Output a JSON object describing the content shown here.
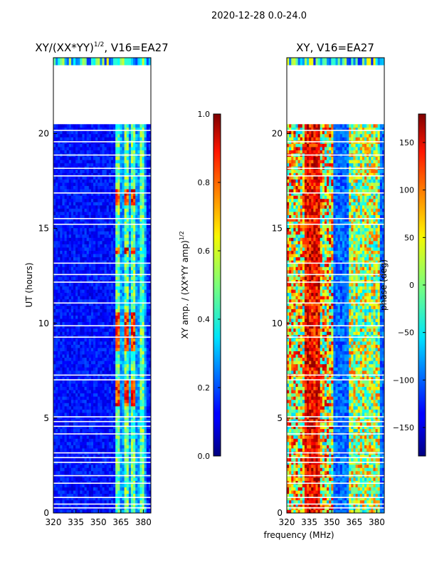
{
  "figure": {
    "suptitle": "2020-12-28 0.0-24.0",
    "xlabel": "frequency (MHz)"
  },
  "chart_data": [
    {
      "type": "heatmap",
      "id": "amp",
      "title": "XY/(XX*YY)",
      "title_exp": "1/2",
      "title_suffix": ", V16=EA27",
      "xlabel": "frequency (MHz)",
      "ylabel": "UT (hours)",
      "xlim": [
        320,
        385
      ],
      "ylim": [
        0,
        24
      ],
      "xticks": [
        320,
        335,
        350,
        365,
        380
      ],
      "yticks": [
        0,
        5,
        10,
        15,
        20
      ],
      "colorbar": {
        "label": "XY amp. / (XX*YY amp)",
        "label_exp": "1/2",
        "range": [
          0.0,
          1.0
        ],
        "ticks": [
          "0.0",
          "0.2",
          "0.4",
          "0.6",
          "0.8",
          "1.0"
        ],
        "tick_values": [
          0.0,
          0.2,
          0.4,
          0.6,
          0.8,
          1.0
        ]
      },
      "colormap": "jet",
      "blank_hours": [
        23.6,
        20.5
      ],
      "hot_bands": [
        [
          5.5,
          7.0
        ],
        [
          8.5,
          10.5
        ],
        [
          13.5,
          14.0
        ],
        [
          16.2,
          17.0
        ]
      ],
      "active_freq_range": [
        361,
        382
      ]
    },
    {
      "type": "heatmap",
      "id": "phase",
      "title": "XY, V16=EA27",
      "xlabel": "frequency (MHz)",
      "ylabel": "",
      "xlim": [
        320,
        385
      ],
      "ylim": [
        0,
        24
      ],
      "xticks": [
        320,
        335,
        350,
        365,
        380
      ],
      "yticks": [
        0,
        5,
        10,
        15,
        20
      ],
      "colorbar": {
        "label": "phase (deg)",
        "range": [
          -180,
          180
        ],
        "ticks": [
          "150",
          "100",
          "50",
          "0",
          "−50",
          "−100",
          "−150"
        ],
        "tick_values": [
          150,
          100,
          50,
          0,
          -50,
          -100,
          -150
        ]
      },
      "colormap": "jet",
      "blank_hours": [
        23.6,
        20.5
      ],
      "active_freq_ranges": [
        [
          320,
          350
        ],
        [
          361,
          382
        ]
      ]
    }
  ]
}
